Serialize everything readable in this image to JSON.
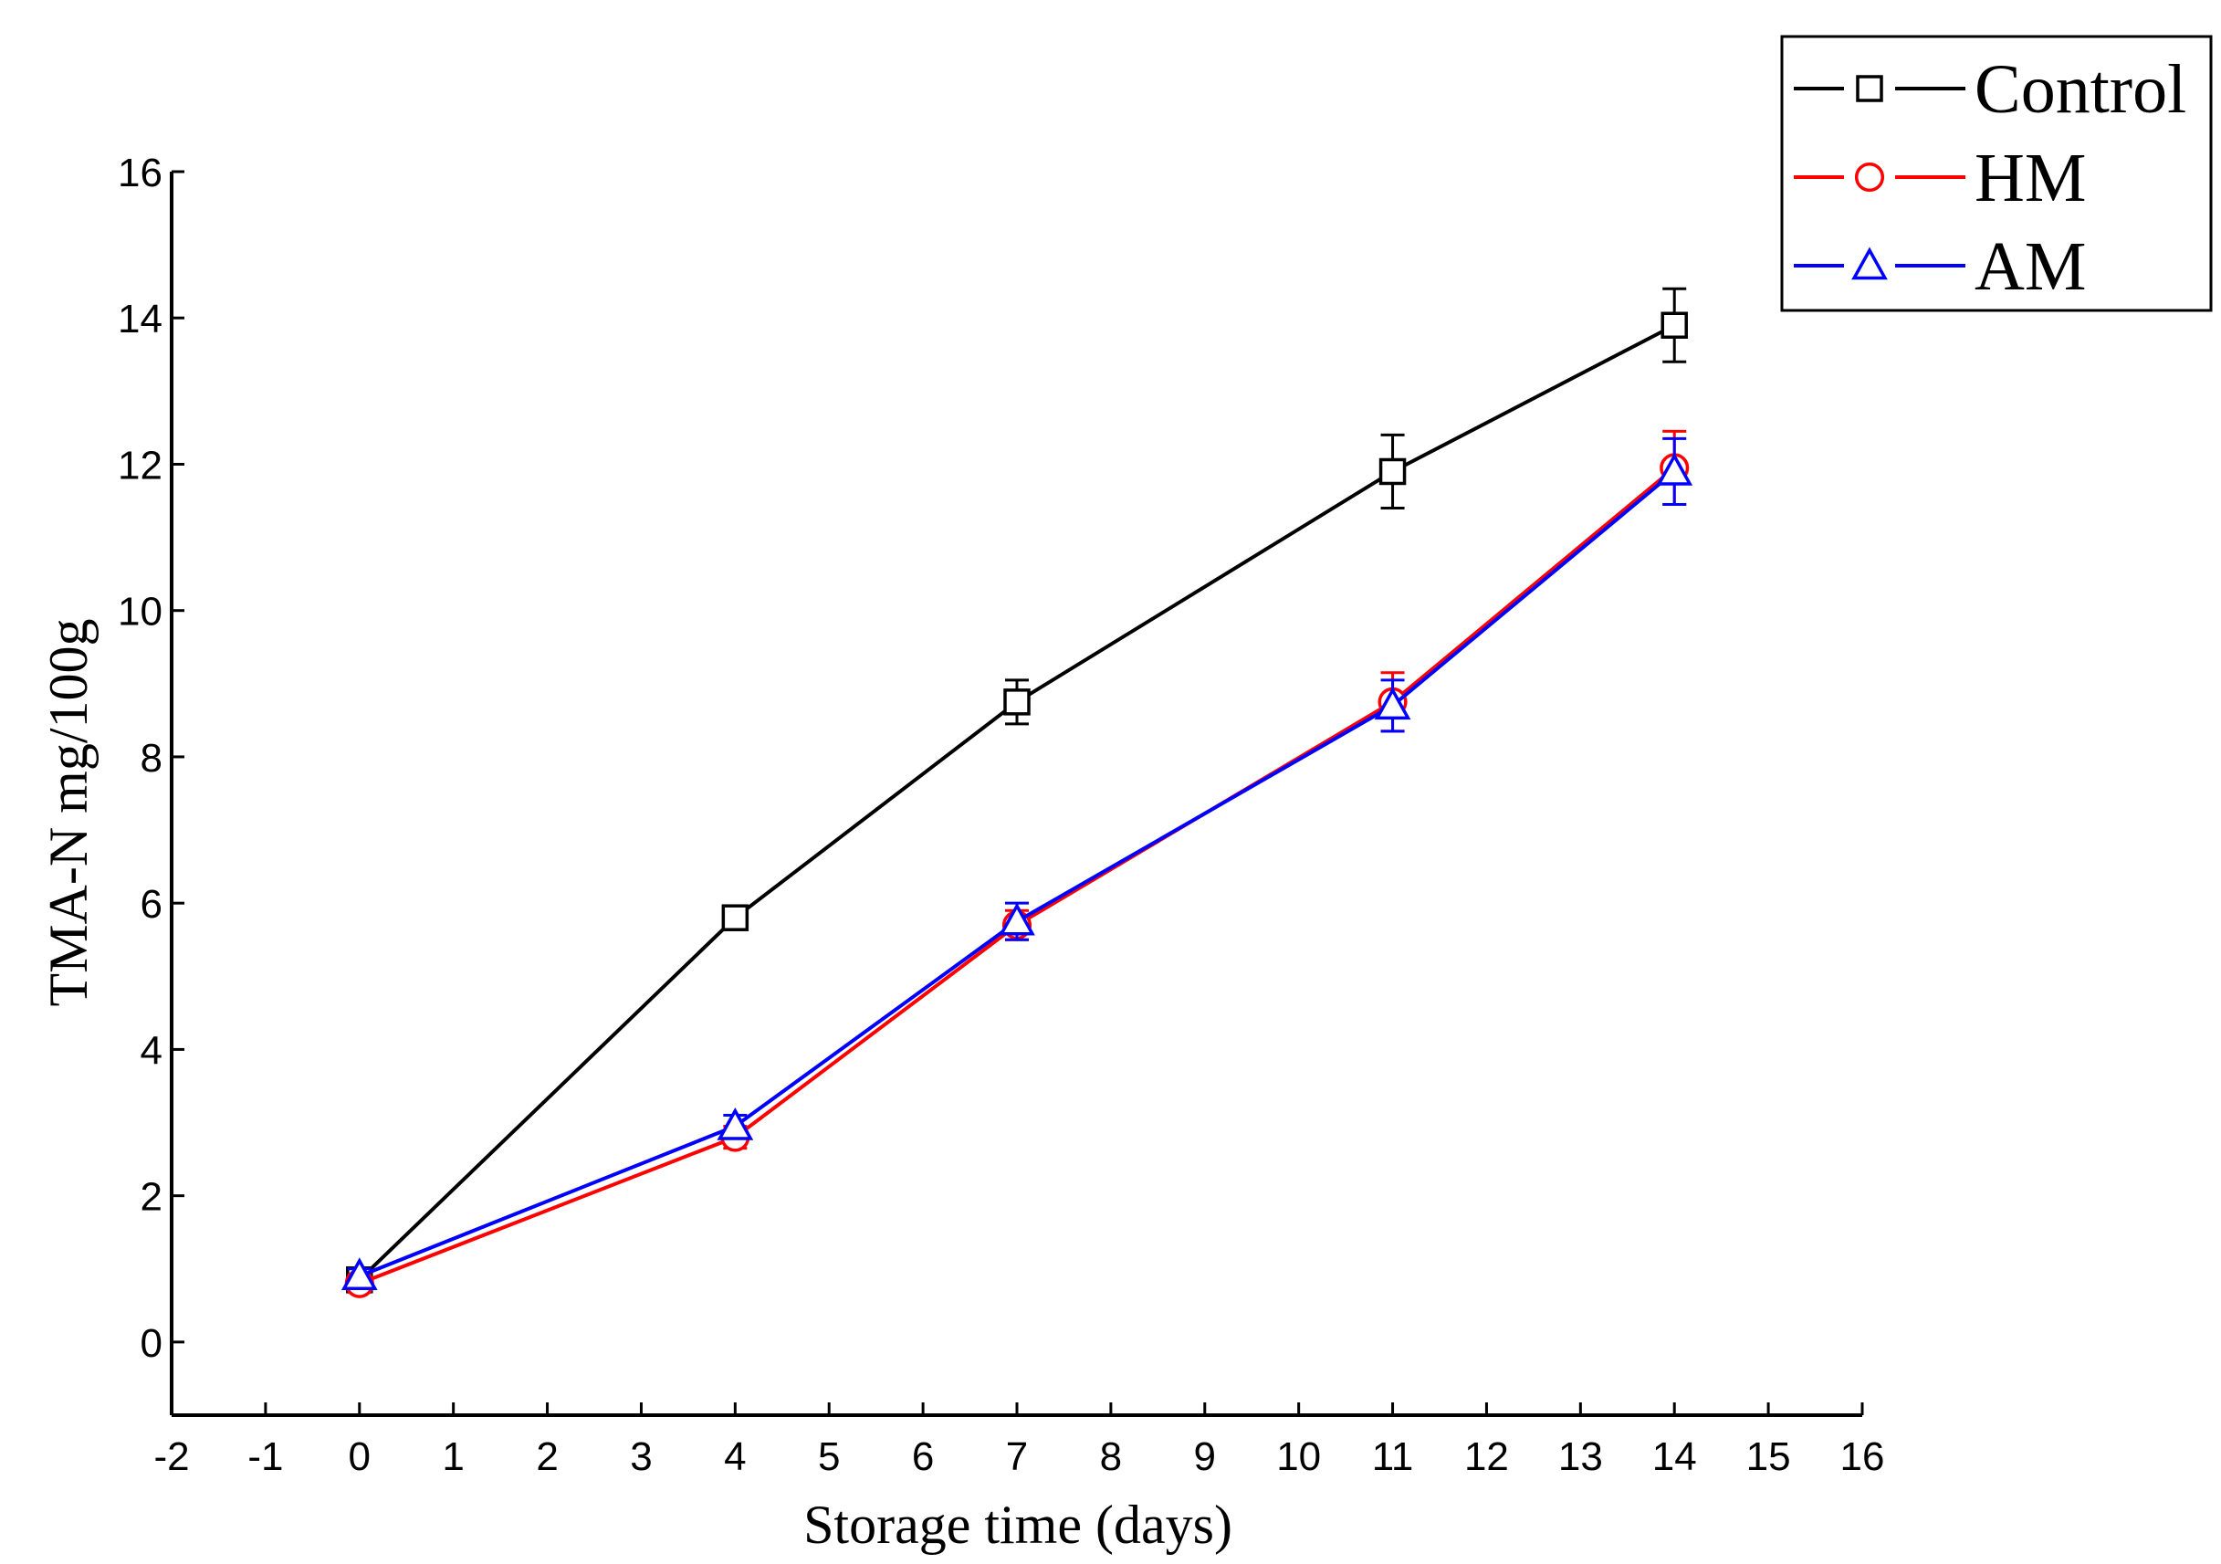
{
  "chart_data": {
    "type": "line",
    "title": "",
    "xlabel": "Storage time (days)",
    "ylabel": "TMA-N mg/100g",
    "xlim": [
      -2,
      16
    ],
    "ylim": [
      -1,
      16
    ],
    "x_ticks": [
      -2,
      -1,
      0,
      1,
      2,
      3,
      4,
      5,
      6,
      7,
      8,
      9,
      10,
      11,
      12,
      13,
      14,
      15,
      16
    ],
    "y_ticks": [
      0,
      2,
      4,
      6,
      8,
      10,
      12,
      14,
      16
    ],
    "x": [
      0,
      4,
      7,
      11,
      14
    ],
    "grid": false,
    "legend_position": "top-right",
    "series": [
      {
        "name": "Control",
        "color": "#000000",
        "marker": "square",
        "values": [
          0.85,
          5.8,
          8.75,
          11.9,
          13.9
        ],
        "errors": [
          0.1,
          0.15,
          0.3,
          0.5,
          0.5
        ]
      },
      {
        "name": "HM",
        "color": "#ff0000",
        "marker": "circle",
        "values": [
          0.8,
          2.8,
          5.7,
          8.75,
          11.95
        ],
        "errors": [
          0.12,
          0.15,
          0.2,
          0.4,
          0.5
        ]
      },
      {
        "name": "AM",
        "color": "#0000ff",
        "marker": "triangle",
        "values": [
          0.9,
          2.95,
          5.75,
          8.7,
          11.9
        ],
        "errors": [
          0.1,
          0.15,
          0.25,
          0.35,
          0.45
        ]
      }
    ]
  }
}
